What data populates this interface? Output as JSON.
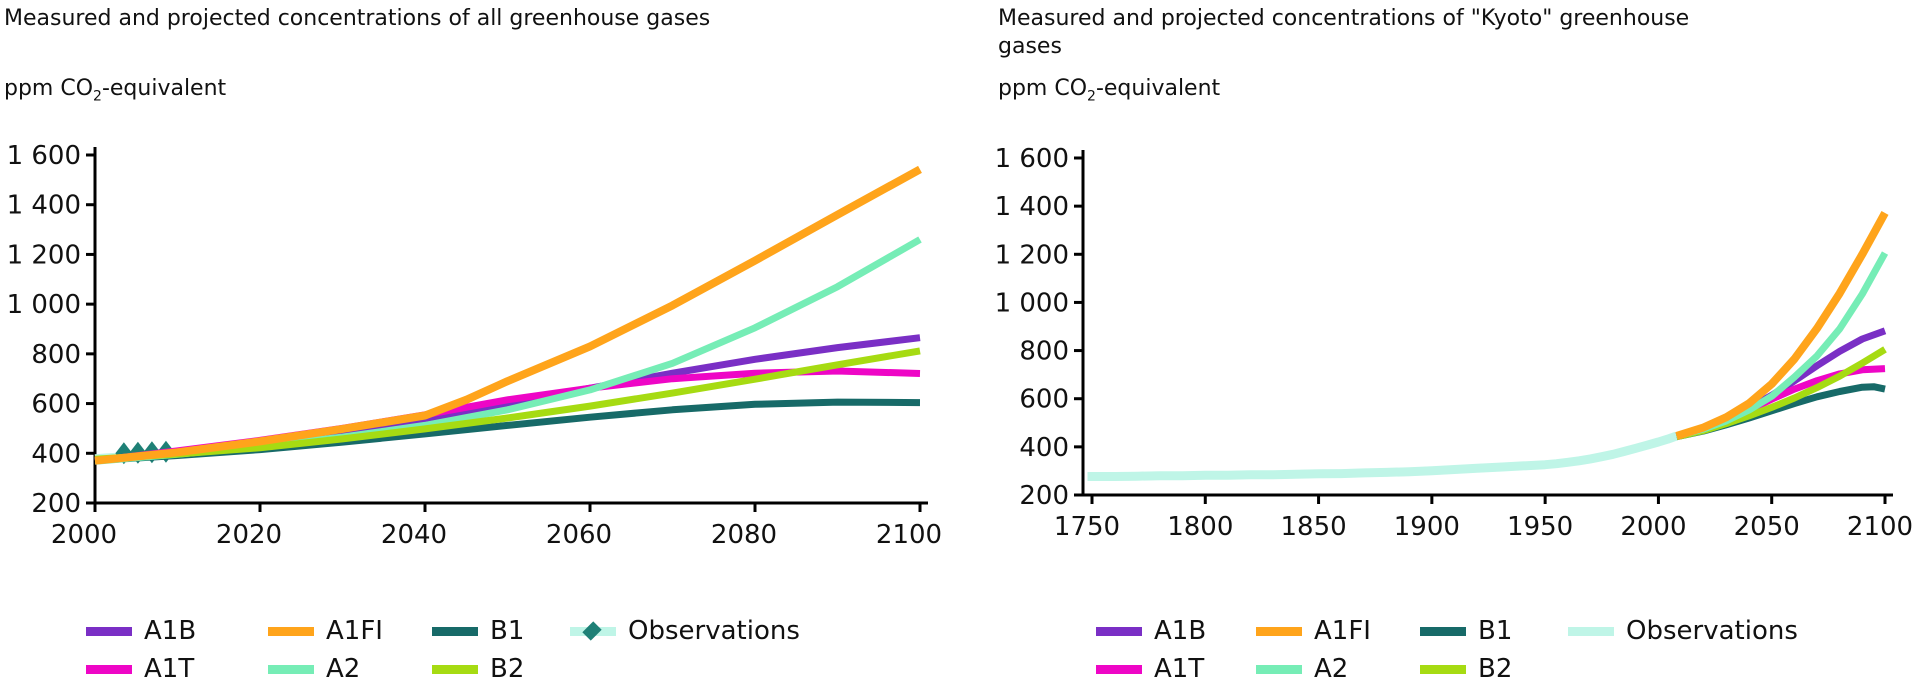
{
  "colors": {
    "axis": "#000000",
    "text": "#111111",
    "background": "#ffffff"
  },
  "chart_data": [
    {
      "type": "line",
      "title": "Measured and projected concentrations of all greenhouse gases",
      "title_lines": [
        "Measured and projected concentrations of all greenhouse gases"
      ],
      "ylabel": "ppm CO2-equivalent",
      "ylabel_parts": {
        "pre": "ppm CO",
        "sub": "2",
        "post": "-equivalent"
      },
      "xlim": [
        2000,
        2100
      ],
      "ylim": [
        200,
        1600
      ],
      "x_ticks": [
        2000,
        2020,
        2040,
        2060,
        2080,
        2100
      ],
      "x_tick_labels": [
        "2000",
        "2020",
        "2040",
        "2060",
        "2080",
        "2100"
      ],
      "y_ticks": [
        200,
        400,
        600,
        800,
        1000,
        1200,
        1400,
        1600
      ],
      "y_tick_labels": [
        "200",
        "400",
        "600",
        "800",
        "1 000",
        "1 200",
        "1 400",
        "1 600"
      ],
      "grid": false,
      "legend_position": "bottom",
      "series": [
        {
          "name": "Observations",
          "color": "#BFF5E7",
          "width": 8,
          "points": [
            [
              2000,
              380
            ],
            [
              2003,
              387
            ],
            [
              2006,
              396
            ],
            [
              2009,
              405
            ]
          ],
          "marker": "diamond",
          "marker_color": "#1E8076",
          "markers": [
            [
              2003.5,
              400
            ],
            [
              2005.2,
              402
            ],
            [
              2006.9,
              404
            ],
            [
              2008.6,
              406
            ]
          ]
        },
        {
          "name": "B1",
          "color": "#176A68",
          "width": 7,
          "points": [
            [
              2000,
              371
            ],
            [
              2010,
              391
            ],
            [
              2020,
              415
            ],
            [
              2030,
              445
            ],
            [
              2040,
              478
            ],
            [
              2050,
              512
            ],
            [
              2060,
              545
            ],
            [
              2070,
              575
            ],
            [
              2080,
              597
            ],
            [
              2090,
              606
            ],
            [
              2100,
              604
            ]
          ]
        },
        {
          "name": "A1B",
          "color": "#7A2FC5",
          "width": 7,
          "points": [
            [
              2000,
              370
            ],
            [
              2010,
              404
            ],
            [
              2020,
              440
            ],
            [
              2030,
              485
            ],
            [
              2040,
              540
            ],
            [
              2050,
              600
            ],
            [
              2060,
              662
            ],
            [
              2070,
              722
            ],
            [
              2080,
              778
            ],
            [
              2090,
              825
            ],
            [
              2100,
              865
            ]
          ]
        },
        {
          "name": "A1T",
          "color": "#EE06C6",
          "width": 7,
          "points": [
            [
              2000,
              370
            ],
            [
              2010,
              410
            ],
            [
              2020,
              452
            ],
            [
              2030,
              500
            ],
            [
              2040,
              555
            ],
            [
              2050,
              615
            ],
            [
              2060,
              662
            ],
            [
              2070,
              700
            ],
            [
              2080,
              722
            ],
            [
              2090,
              731
            ],
            [
              2100,
              721
            ]
          ]
        },
        {
          "name": "A2",
          "color": "#76EDB6",
          "width": 7,
          "points": [
            [
              2000,
              368
            ],
            [
              2010,
              396
            ],
            [
              2020,
              428
            ],
            [
              2030,
              465
            ],
            [
              2040,
              512
            ],
            [
              2050,
              575
            ],
            [
              2060,
              655
            ],
            [
              2070,
              762
            ],
            [
              2080,
              905
            ],
            [
              2090,
              1070
            ],
            [
              2100,
              1260
            ]
          ]
        },
        {
          "name": "B2",
          "color": "#A6DB12",
          "width": 7,
          "points": [
            [
              2000,
              376
            ],
            [
              2010,
              397
            ],
            [
              2020,
              422
            ],
            [
              2030,
              458
            ],
            [
              2040,
              498
            ],
            [
              2050,
              542
            ],
            [
              2060,
              590
            ],
            [
              2070,
              642
            ],
            [
              2080,
              698
            ],
            [
              2090,
              756
            ],
            [
              2100,
              812
            ]
          ]
        },
        {
          "name": "A1FI",
          "color": "#FFA41B",
          "width": 8,
          "points": [
            [
              2000,
              370
            ],
            [
              2010,
              404
            ],
            [
              2020,
              448
            ],
            [
              2030,
              498
            ],
            [
              2040,
              552
            ],
            [
              2045,
              615
            ],
            [
              2050,
              690
            ],
            [
              2060,
              830
            ],
            [
              2070,
              995
            ],
            [
              2080,
              1175
            ],
            [
              2090,
              1360
            ],
            [
              2100,
              1542
            ]
          ]
        }
      ],
      "legend": {
        "rows": [
          [
            {
              "label": "A1B",
              "color": "#7A2FC5"
            },
            {
              "label": "A1FI",
              "color": "#FFA41B"
            },
            {
              "label": "B1",
              "color": "#176A68"
            },
            {
              "label": "Observations",
              "color": "#BFF5E7",
              "marker_color": "#1E8076"
            }
          ],
          [
            {
              "label": "A1T",
              "color": "#EE06C6"
            },
            {
              "label": "A2",
              "color": "#76EDB6"
            },
            {
              "label": "B2",
              "color": "#A6DB12"
            }
          ]
        ]
      }
    },
    {
      "type": "line",
      "title": "Measured and projected concentrations of \"Kyoto\" greenhouse gases",
      "title_lines": [
        "Measured and projected concentrations of \"Kyoto\" greenhouse",
        "gases"
      ],
      "ylabel": "ppm CO2-equivalent",
      "ylabel_parts": {
        "pre": "ppm CO",
        "sub": "2",
        "post": "-equivalent"
      },
      "xlim": [
        1750,
        2100
      ],
      "ylim": [
        200,
        1600
      ],
      "x_ticks": [
        1750,
        1800,
        1850,
        1900,
        1950,
        2000,
        2050,
        2100
      ],
      "x_tick_labels": [
        "1750",
        "1800",
        "1850",
        "1900",
        "1950",
        "2000",
        "2050",
        "2100"
      ],
      "y_ticks": [
        200,
        400,
        600,
        800,
        1000,
        1200,
        1400,
        1600
      ],
      "y_tick_labels": [
        "200",
        "400",
        "600",
        "800",
        "1 000",
        "1 200",
        "1 400",
        "1 600"
      ],
      "grid": false,
      "legend_position": "bottom",
      "series": [
        {
          "name": "Observations",
          "color": "#BFF5E7",
          "width": 9,
          "points": [
            [
              1748,
              277
            ],
            [
              1760,
              277
            ],
            [
              1770,
              278
            ],
            [
              1780,
              280
            ],
            [
              1790,
              280
            ],
            [
              1800,
              282
            ],
            [
              1810,
              282
            ],
            [
              1820,
              284
            ],
            [
              1830,
              284
            ],
            [
              1840,
              286
            ],
            [
              1850,
              288
            ],
            [
              1860,
              289
            ],
            [
              1870,
              292
            ],
            [
              1880,
              294
            ],
            [
              1890,
              297
            ],
            [
              1900,
              301
            ],
            [
              1910,
              306
            ],
            [
              1920,
              311
            ],
            [
              1930,
              316
            ],
            [
              1940,
              321
            ],
            [
              1950,
              326
            ],
            [
              1955,
              330
            ],
            [
              1960,
              336
            ],
            [
              1965,
              342
            ],
            [
              1970,
              350
            ],
            [
              1975,
              359
            ],
            [
              1980,
              369
            ],
            [
              1985,
              381
            ],
            [
              1990,
              394
            ],
            [
              1995,
              407
            ],
            [
              2000,
              420
            ],
            [
              2004,
              432
            ],
            [
              2008,
              445
            ]
          ]
        },
        {
          "name": "B1",
          "color": "#176A68",
          "width": 7,
          "points": [
            [
              2008,
              442
            ],
            [
              2020,
              466
            ],
            [
              2030,
              492
            ],
            [
              2040,
              520
            ],
            [
              2050,
              550
            ],
            [
              2060,
              580
            ],
            [
              2070,
              608
            ],
            [
              2080,
              630
            ],
            [
              2090,
              648
            ],
            [
              2095,
              650
            ],
            [
              2100,
              640
            ]
          ]
        },
        {
          "name": "A1B",
          "color": "#7A2FC5",
          "width": 7,
          "points": [
            [
              2008,
              445
            ],
            [
              2020,
              479
            ],
            [
              2030,
              516
            ],
            [
              2040,
              561
            ],
            [
              2050,
              614
            ],
            [
              2060,
              674
            ],
            [
              2070,
              737
            ],
            [
              2080,
              797
            ],
            [
              2090,
              848
            ],
            [
              2100,
              882
            ]
          ]
        },
        {
          "name": "A1T",
          "color": "#EE06C6",
          "width": 7,
          "points": [
            [
              2008,
              445
            ],
            [
              2020,
              476
            ],
            [
              2030,
              511
            ],
            [
              2040,
              553
            ],
            [
              2050,
              598
            ],
            [
              2060,
              640
            ],
            [
              2070,
              675
            ],
            [
              2080,
              703
            ],
            [
              2090,
              720
            ],
            [
              2100,
              725
            ]
          ]
        },
        {
          "name": "B2",
          "color": "#A6DB12",
          "width": 7,
          "points": [
            [
              2008,
              442
            ],
            [
              2020,
              468
            ],
            [
              2030,
              497
            ],
            [
              2040,
              529
            ],
            [
              2050,
              564
            ],
            [
              2060,
              603
            ],
            [
              2070,
              646
            ],
            [
              2080,
              694
            ],
            [
              2090,
              748
            ],
            [
              2100,
              805
            ]
          ]
        },
        {
          "name": "A2",
          "color": "#76EDB6",
          "width": 7,
          "points": [
            [
              2008,
              445
            ],
            [
              2020,
              474
            ],
            [
              2030,
              508
            ],
            [
              2040,
              553
            ],
            [
              2050,
              610
            ],
            [
              2060,
              690
            ],
            [
              2070,
              778
            ],
            [
              2080,
              890
            ],
            [
              2090,
              1035
            ],
            [
              2100,
              1205
            ]
          ]
        },
        {
          "name": "A1FI",
          "color": "#FFA41B",
          "width": 8,
          "points": [
            [
              2008,
              445
            ],
            [
              2020,
              481
            ],
            [
              2030,
              523
            ],
            [
              2040,
              581
            ],
            [
              2050,
              661
            ],
            [
              2060,
              765
            ],
            [
              2070,
              892
            ],
            [
              2080,
              1038
            ],
            [
              2090,
              1200
            ],
            [
              2100,
              1372
            ]
          ]
        }
      ],
      "legend": {
        "rows": [
          [
            {
              "label": "A1B",
              "color": "#7A2FC5"
            },
            {
              "label": "A1FI",
              "color": "#FFA41B"
            },
            {
              "label": "B1",
              "color": "#176A68"
            },
            {
              "label": "Observations",
              "color": "#BFF5E7"
            }
          ],
          [
            {
              "label": "A1T",
              "color": "#EE06C6"
            },
            {
              "label": "A2",
              "color": "#76EDB6"
            },
            {
              "label": "B2",
              "color": "#A6DB12"
            }
          ]
        ]
      }
    }
  ]
}
